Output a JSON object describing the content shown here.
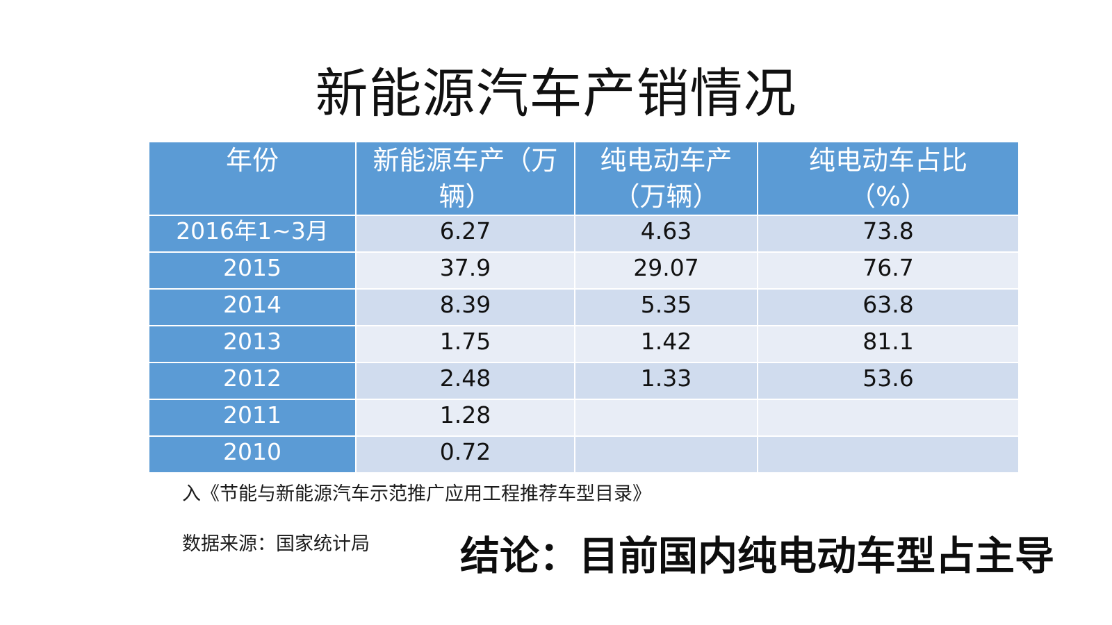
{
  "slide": {
    "title": "新能源汽车产销情况"
  },
  "table": {
    "headers": [
      {
        "line1": "年份",
        "line2": ""
      },
      {
        "line1": "新能源车产（万",
        "line2": "辆）"
      },
      {
        "line1": "纯电动车产",
        "line2": "（万辆）"
      },
      {
        "line1": "纯电动车占比",
        "line2": "（%）"
      }
    ],
    "rows": [
      {
        "year": "2016年1~3月",
        "nev_output": "6.27",
        "bev_output": "4.63",
        "bev_share": "73.8"
      },
      {
        "year": "2015",
        "nev_output": "37.9",
        "bev_output": "29.07",
        "bev_share": "76.7"
      },
      {
        "year": "2014",
        "nev_output": "8.39",
        "bev_output": "5.35",
        "bev_share": "63.8"
      },
      {
        "year": "2013",
        "nev_output": "1.75",
        "bev_output": "1.42",
        "bev_share": "81.1"
      },
      {
        "year": "2012",
        "nev_output": "2.48",
        "bev_output": "1.33",
        "bev_share": "53.6"
      },
      {
        "year": "2011",
        "nev_output": "1.28",
        "bev_output": "",
        "bev_share": ""
      },
      {
        "year": "2010",
        "nev_output": "0.72",
        "bev_output": "",
        "bev_share": ""
      }
    ]
  },
  "footnote": {
    "catalog_note": "入《节能与新能源汽车示范推广应用工程推荐车型目录》",
    "source": "数据来源：国家统计局"
  },
  "conclusion": {
    "text": "结论：目前国内纯电动车型占主导"
  },
  "colors": {
    "header_bg": "#5b9bd5",
    "row_odd_bg": "#d0dcee",
    "row_even_bg": "#e8edf6",
    "text": "#111111"
  }
}
